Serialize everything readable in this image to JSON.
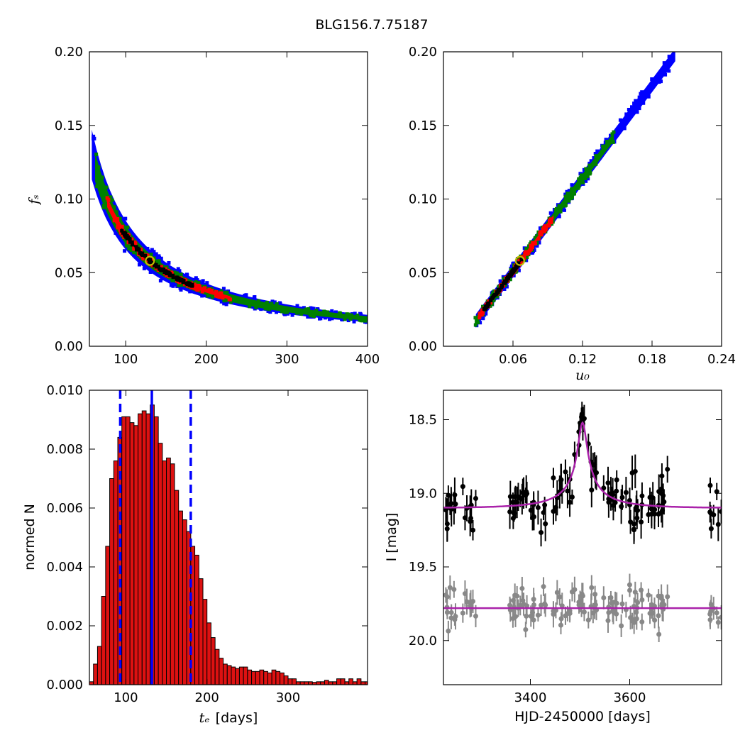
{
  "figure_title": "BLG156.7.75187",
  "colors": {
    "sigma3": "#0000ff",
    "sigma2": "#008000",
    "sigma1": "#ff0000",
    "core": "#000000",
    "best_marker": "#bfbf00",
    "hist_bar": "#dd1111",
    "hist_lines": "#0000ff",
    "model": "#aa22aa",
    "data_main": "#000000",
    "data_resid": "#888888"
  },
  "chart_data": [
    {
      "type": "heatmap",
      "panel": "tE-fs",
      "xlim": [
        55,
        400
      ],
      "ylim": [
        0.0,
        0.2
      ],
      "xticks": [
        "100",
        "200",
        "300",
        "400"
      ],
      "yticks": [
        "0.00",
        "0.05",
        "0.10",
        "0.15",
        "0.20"
      ],
      "xlabel": "",
      "ylabel": "f_s",
      "relation": "fs = 7.55 / tE",
      "levels": [
        {
          "name": "3-sigma",
          "x_range": [
            58,
            400
          ],
          "halfwidth": 0.13
        },
        {
          "name": "2-sigma",
          "x_range": [
            62,
            400
          ],
          "halfwidth": 0.08
        },
        {
          "name": "1-sigma",
          "x_range": [
            77,
            230
          ],
          "halfwidth": 0.035
        },
        {
          "name": "core",
          "x_range": [
            95,
            185
          ],
          "halfwidth": 0.012
        }
      ],
      "best_fit": {
        "x": 130,
        "y": 0.058
      }
    },
    {
      "type": "heatmap",
      "panel": "u0-fs",
      "xlim": [
        0.0,
        0.24
      ],
      "ylim": [
        0.0,
        0.2
      ],
      "xticks": [
        "0.06",
        "0.12",
        "0.18",
        "0.24"
      ],
      "yticks": [
        "0.00",
        "0.05",
        "0.10",
        "0.15",
        "0.20"
      ],
      "xlabel": "u_0",
      "ylabel": "",
      "relation": "fs = 1.05 * u0 - 0.012",
      "levels": [
        {
          "name": "3-sigma",
          "x_range": [
            0.028,
            0.2
          ],
          "halfwidth": 0.004
        },
        {
          "name": "2-sigma",
          "x_range": [
            0.027,
            0.147
          ],
          "halfwidth": 0.0026
        },
        {
          "name": "1-sigma",
          "x_range": [
            0.03,
            0.095
          ],
          "halfwidth": 0.0012
        },
        {
          "name": "core",
          "x_range": [
            0.035,
            0.068
          ],
          "halfwidth": 0.0005
        }
      ],
      "best_fit": {
        "x": 0.066,
        "y": 0.058
      }
    },
    {
      "type": "bar",
      "panel": "tE-histogram",
      "xlim": [
        55,
        398
      ],
      "ylim": [
        0.0,
        0.01
      ],
      "xticks": [
        "100",
        "200",
        "300"
      ],
      "yticks": [
        "0.000",
        "0.002",
        "0.004",
        "0.006",
        "0.008",
        "0.010"
      ],
      "xlabel": "t_E",
      "xlabel_unit": "[days]",
      "ylabel": "normed N",
      "bin_start": 55,
      "bin_width": 5,
      "values": [
        0.0001,
        0.0007,
        0.0013,
        0.003,
        0.0047,
        0.007,
        0.0076,
        0.0084,
        0.0091,
        0.0091,
        0.0089,
        0.0088,
        0.0092,
        0.0093,
        0.0092,
        0.0095,
        0.0091,
        0.0082,
        0.0076,
        0.0077,
        0.0075,
        0.0066,
        0.0059,
        0.0056,
        0.0052,
        0.0047,
        0.0044,
        0.0036,
        0.0029,
        0.0021,
        0.0016,
        0.0012,
        0.0009,
        0.0007,
        0.00065,
        0.0006,
        0.00055,
        0.0006,
        0.0006,
        0.0005,
        0.00045,
        0.00045,
        0.0005,
        0.00045,
        0.0004,
        0.0005,
        0.00045,
        0.0004,
        0.0003,
        0.0002,
        0.0002,
        0.0001,
        0.0001,
        0.0001,
        0.0001,
        8e-05,
        0.0001,
        0.0001,
        0.00015,
        0.0001,
        0.0001,
        0.0002,
        0.0002,
        0.0001,
        0.0002,
        0.0001,
        0.0002,
        0.0001,
        0.0001
      ],
      "median": 132,
      "bounds": [
        93,
        180
      ]
    },
    {
      "type": "scatter",
      "panel": "lightcurve",
      "xlim": [
        3225,
        3785
      ],
      "ylim": [
        20.3,
        18.3
      ],
      "xticks": [
        "3400",
        "3600"
      ],
      "yticks": [
        "18.5",
        "19.0",
        "19.5",
        "20.0"
      ],
      "xlabel": "HJD-2450000 [days]",
      "ylabel": "I [mag]",
      "model": {
        "t0": 3505,
        "base_mag": 19.1,
        "peak_mag": 18.52,
        "tE": 130,
        "u0": 0.066
      },
      "resid_offset": 19.78,
      "data_tracks": [
        {
          "name": "main",
          "x_segments": [
            [
              3225,
              3290
            ],
            [
              3355,
              3680
            ],
            [
              3760,
              3785
            ]
          ]
        }
      ]
    }
  ]
}
